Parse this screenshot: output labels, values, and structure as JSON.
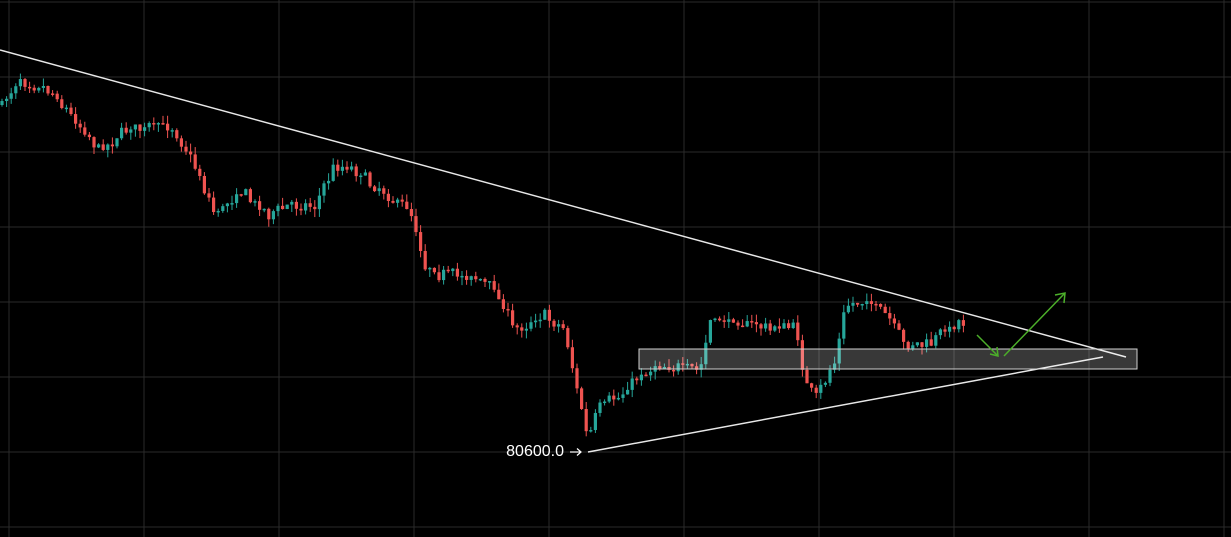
{
  "annotation": {
    "label": "80600.0"
  }
}
